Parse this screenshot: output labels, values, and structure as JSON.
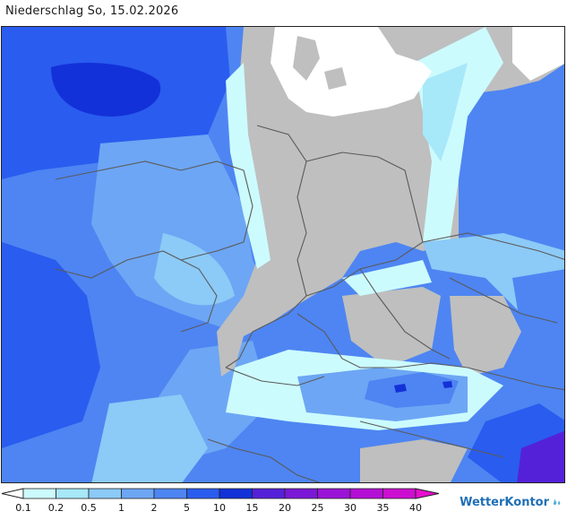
{
  "title": "Niederschlag So, 15.02.2026",
  "legend": {
    "ticks": [
      "0.1",
      "0.2",
      "0.5",
      "1",
      "2",
      "5",
      "10",
      "15",
      "20",
      "25",
      "30",
      "35",
      "40"
    ],
    "colors": [
      "#ccfbfe",
      "#a7e8f9",
      "#8ccaf7",
      "#6da6f4",
      "#4e85f2",
      "#2a5cef",
      "#1331d8",
      "#5421d8",
      "#7a18d6",
      "#9a14d8",
      "#b40fd5",
      "#cc0ed0",
      "#e60fcf"
    ]
  },
  "brand": {
    "name": "WetterKontor",
    "icon": "rain-drop-icon"
  },
  "palette": {
    "land": "#bfbfbf",
    "sea": "#ffffff",
    "light_blue": "#a7e8f9",
    "mid_blue": "#6da6f4",
    "blue": "#4e85f2",
    "deep_blue": "#2a5cef",
    "dark_blue": "#1331d8",
    "violet": "#5421d8",
    "border_line": "#5a5a5a"
  }
}
